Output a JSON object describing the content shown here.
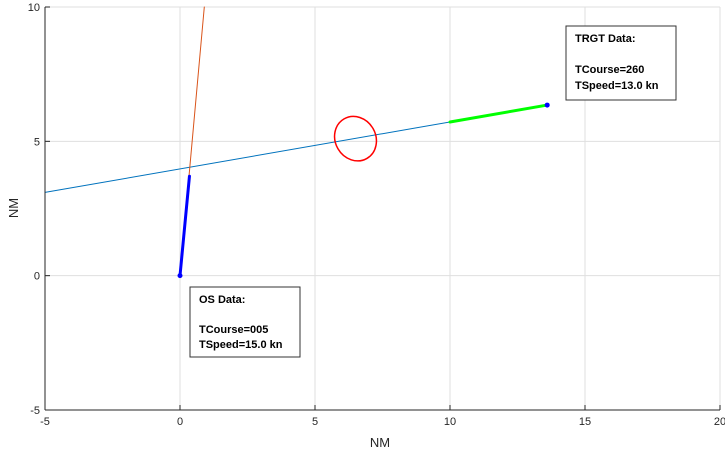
{
  "chart_data": {
    "type": "line",
    "xlabel": "NM",
    "ylabel": "NM",
    "xlim": [
      -5,
      20
    ],
    "ylim": [
      -5,
      10
    ],
    "xticks": [
      -5,
      0,
      5,
      10,
      15,
      20
    ],
    "yticks": [
      -5,
      0,
      5,
      10
    ],
    "grid": true,
    "series": [
      {
        "x": [
          -5,
          13.6
        ],
        "y": [
          3.1,
          6.35
        ],
        "color": "#0072bd"
      },
      {
        "x": [
          0,
          0.9
        ],
        "y": [
          0,
          10
        ],
        "color": "#d95319"
      },
      {
        "x": [
          0,
          0.35
        ],
        "y": [
          0,
          3.7
        ],
        "color": "#0000ff"
      },
      {
        "x": [
          10,
          13.6
        ],
        "y": [
          5.72,
          6.35
        ],
        "color": "#00ff00"
      }
    ],
    "points": [
      {
        "x": 0,
        "y": 0,
        "color": "#0000ff"
      },
      {
        "x": 13.6,
        "y": 6.35,
        "color": "#0000ff"
      }
    ],
    "ellipse": {
      "cx": 6.5,
      "cy": 5.1,
      "rx": 0.75,
      "ry": 0.85,
      "color": "#ff0000"
    },
    "annotations": {
      "os": {
        "title": "OS Data:",
        "line1": "TCourse=005",
        "line2": "TSpeed=15.0 kn"
      },
      "trgt": {
        "title": "TRGT Data:",
        "line1": "TCourse=260",
        "line2": "TSpeed=13.0 kn"
      }
    }
  }
}
